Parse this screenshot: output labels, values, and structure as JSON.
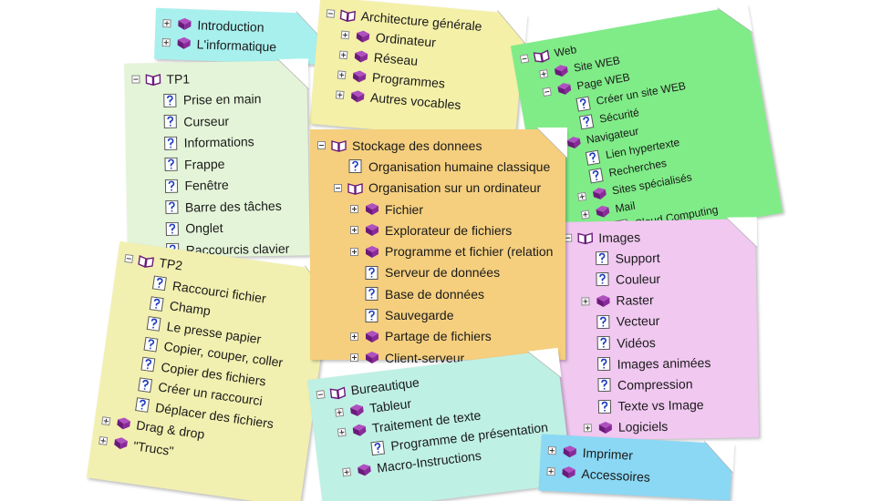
{
  "notes": [
    {
      "items": [
        "Introduction",
        "L'informatique"
      ]
    },
    {
      "title": "Architecture générale",
      "items": [
        "Ordinateur",
        "Réseau",
        "Programmes",
        "Autres vocables"
      ]
    },
    {
      "title": "Web",
      "items": [
        "Site WEB",
        "Page WEB",
        "Créer un site WEB",
        "Sécurité",
        "Navigateur",
        "Lien hypertexte",
        "Recherches",
        "Sites spécialisés",
        "Mail",
        "Cloud Computing"
      ]
    },
    {
      "title": "TP1",
      "items": [
        "Prise en main",
        "Curseur",
        "Informations",
        "Frappe",
        "Fenêtre",
        "Barre des tâches",
        "Onglet",
        "Raccourcis clavier"
      ]
    },
    {
      "title": "TP2",
      "items": [
        "Raccourci fichier",
        "Champ",
        "Le presse papier",
        "Copier, couper, coller",
        "Copier des fichiers",
        "Créer un raccourci",
        "Déplacer des fichiers",
        "Drag & drop",
        "\"Trucs\""
      ]
    },
    {
      "title": "Images",
      "items": [
        "Support",
        "Couleur",
        "Raster",
        "Vecteur",
        "Vidéos",
        "Images animées",
        "Compression",
        "Texte vs Image",
        "Logiciels"
      ]
    },
    {
      "title": "Stockage des donnees",
      "items": [
        "Organisation humaine classique",
        "Organisation sur un ordinateur",
        "Fichier",
        "Explorateur de fichiers",
        "Programme et fichier (relation",
        "Serveur de données",
        "Base de données",
        "Sauvegarde",
        "Partage de fichiers",
        "Client-serveur"
      ]
    },
    {
      "title": "Bureautique",
      "items": [
        "Tableur",
        "Traitement de texte",
        "Programme de présentation",
        "Macro-Instructions"
      ]
    },
    {
      "items": [
        "Imprimer",
        "Accessoires"
      ]
    }
  ]
}
